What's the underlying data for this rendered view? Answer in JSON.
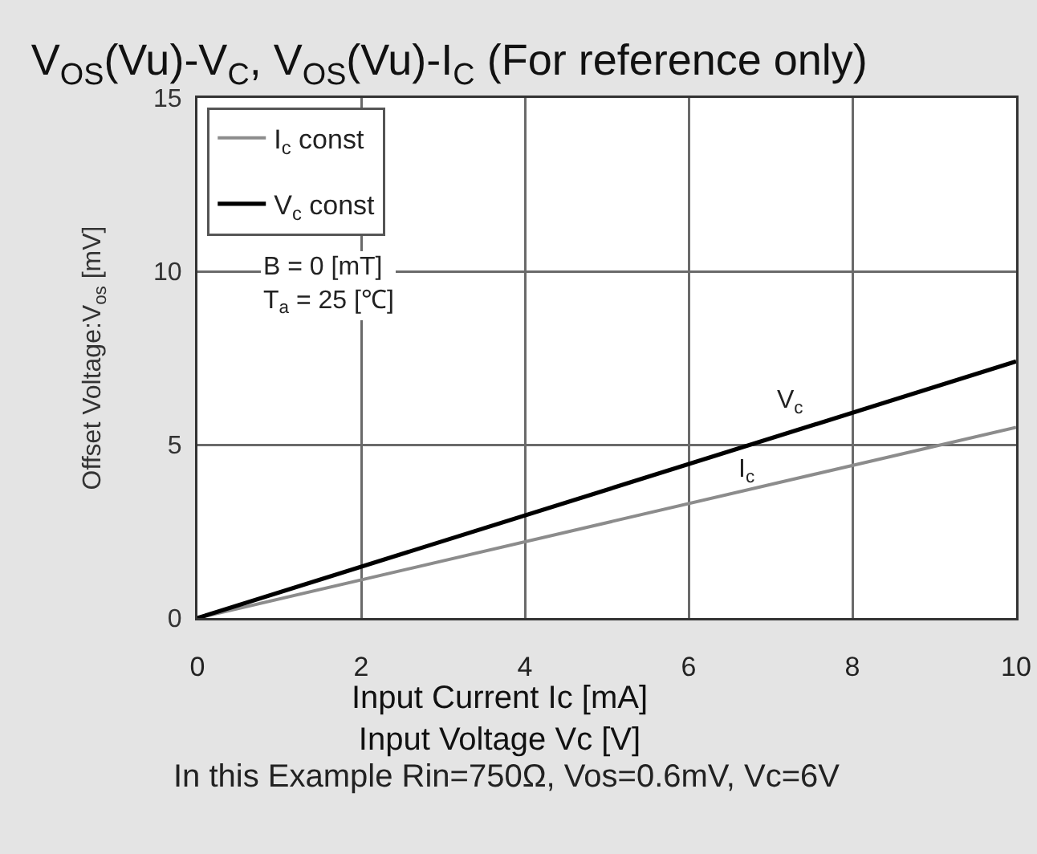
{
  "chart_data": {
    "type": "line",
    "title": "V$_{OS}$(Vu)-V$_{C}$, V$_{OS}$(Vu)-I$_{C}$ (For reference only)",
    "xlabel": "Input Current Ic [mA]\nInput Voltage Vc [V]",
    "ylabel": "Offset Voltage:V$_{os}$ [mV]",
    "x": [
      0,
      10
    ],
    "series": [
      {
        "name": "I$_{c}$ const",
        "color": "#8c8c8c",
        "values": [
          0,
          5.5
        ]
      },
      {
        "name": "V$_{c}$ const",
        "color": "#000000",
        "values": [
          0,
          7.4
        ]
      }
    ],
    "xlim": [
      0,
      10
    ],
    "ylim": [
      0,
      15
    ],
    "xticks": [
      0,
      2,
      4,
      6,
      8,
      10
    ],
    "yticks": [
      0,
      5,
      10,
      15
    ],
    "grid": true,
    "legend": "top left",
    "marker": "none",
    "line_style": "solid",
    "annotations": [
      "B = 0 [mT]\nT$_{a}$ = 25 [℃]",
      "V$_{c}$",
      "I$_{c}$",
      "In this Example Rin=750Ω, Vos=0.6mV, Vc=6V"
    ]
  }
}
